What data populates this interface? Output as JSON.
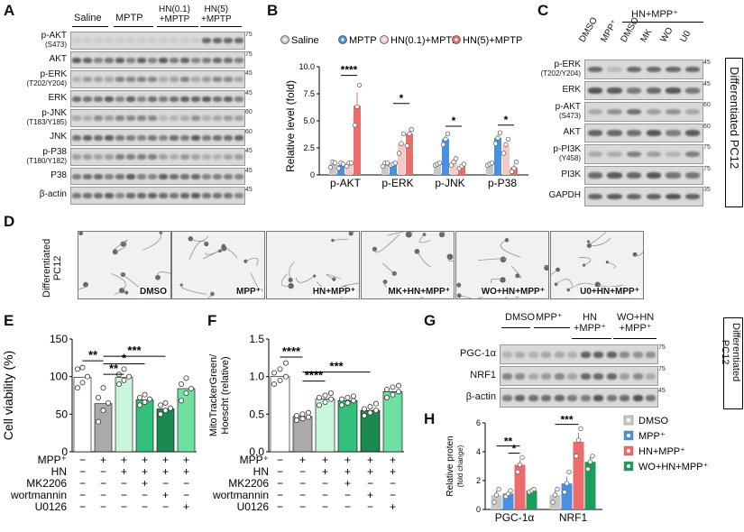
{
  "panels": {
    "A": "A",
    "B": "B",
    "C": "C",
    "D": "D",
    "E": "E",
    "F": "F",
    "G": "G",
    "H": "H"
  },
  "panelA": {
    "groups": [
      "Saline",
      "MPTP",
      "HN(0.1)\n+MPTP",
      "HN(5)\n+MPTP"
    ],
    "rows": [
      {
        "name": "p-AKT\n(S473)",
        "mw": "75"
      },
      {
        "name": "AKT",
        "mw": "75"
      },
      {
        "name": "p-ERK\n(T202/Y204)",
        "mw": "45"
      },
      {
        "name": "ERK",
        "mw": "45"
      },
      {
        "name": "p-JNK\n(T183/Y185)",
        "mw": "60"
      },
      {
        "name": "JNK",
        "mw": "60"
      },
      {
        "name": "p-P38\n(T180/Y182)",
        "mw": "45"
      },
      {
        "name": "P38",
        "mw": "45"
      },
      {
        "name": "β-actin",
        "mw": "45"
      }
    ]
  },
  "panelB": {
    "ylabel": "Relative level (fold)",
    "legend": [
      "Saline",
      "MPTP",
      "HN(0.1)+MPTP",
      "HN(5)+MPTP"
    ],
    "sig": [
      "****",
      "*",
      "*",
      "*"
    ]
  },
  "panelC": {
    "header": "HN+MPP⁺",
    "lanes": [
      "DMSO",
      "MPP⁺",
      "DMSO",
      "MK",
      "WO",
      "U0"
    ],
    "rows": [
      {
        "name": "p-ERK\n(T202/Y204)",
        "mw": "45"
      },
      {
        "name": "ERK",
        "mw": "45"
      },
      {
        "name": "p-AKT\n(S473)",
        "mw": "60"
      },
      {
        "name": "AKT",
        "mw": "60"
      },
      {
        "name": "p-PI3K\n(Y458)",
        "mw": "75"
      },
      {
        "name": "PI3K",
        "mw": "75"
      },
      {
        "name": "GAPDH",
        "mw": "35"
      }
    ],
    "side": "Differentiated PC12"
  },
  "panelD": {
    "side": "Differentiated\nPC12",
    "images": [
      "DMSO",
      "MPP⁺",
      "HN+MPP⁺",
      "MK+HN+MPP⁺",
      "WO+HN+MPP⁺",
      "U0+HN+MPP⁺"
    ]
  },
  "panelE": {
    "ylabel": "Cell viability (%)",
    "sig": [
      "**",
      "**",
      "*",
      "***"
    ]
  },
  "panelF": {
    "ylabel": "MitoTrackerGreen/\nHoescht (relative)",
    "sig": [
      "****",
      "****",
      "***"
    ]
  },
  "treatTable": {
    "rows": [
      "MPP⁺",
      "HN",
      "MK2206",
      "wortmannin",
      "U0126"
    ],
    "cells": [
      [
        "−",
        "+",
        "+",
        "+",
        "+",
        "+"
      ],
      [
        "−",
        "−",
        "+",
        "+",
        "+",
        "+"
      ],
      [
        "−",
        "−",
        "−",
        "+",
        "−",
        "−"
      ],
      [
        "−",
        "−",
        "−",
        "−",
        "+",
        "−"
      ],
      [
        "−",
        "−",
        "−",
        "−",
        "−",
        "+"
      ]
    ]
  },
  "panelG": {
    "lanes": [
      "DMSO",
      "MPP⁺",
      "HN\n+MPP⁺",
      "WO+HN\n+MPP⁺"
    ],
    "rows": [
      {
        "name": "PGC-1α",
        "mw": "75"
      },
      {
        "name": "NRF1",
        "mw": "75"
      },
      {
        "name": "β-actin",
        "mw": "45"
      }
    ],
    "side": "Differentiated\nPC12"
  },
  "panelH": {
    "ylabel": "Relative proten\n(fold change)",
    "legend": [
      "DMSO",
      "MPP⁺",
      "HN+MPP⁺",
      "WO+HN+MPP⁺"
    ],
    "sig": [
      "**",
      "*",
      "***"
    ]
  },
  "chart_data": [
    {
      "id": "B",
      "type": "bar",
      "categories": [
        "p-AKT",
        "p-ERK",
        "p-JNK",
        "p-P38"
      ],
      "ylim": [
        0,
        10
      ],
      "yticks": [
        0,
        2.5,
        5.0,
        7.5,
        10.0
      ],
      "ylabel": "Relative level (fold)",
      "series": [
        {
          "name": "Saline",
          "color": "#c8c8c8",
          "values": [
            1.0,
            1.0,
            1.0,
            1.0
          ],
          "points": [
            [
              0.7,
              1.2,
              1.1
            ],
            [
              0.8,
              1.1,
              1.1
            ],
            [
              0.9,
              1.0,
              1.1
            ],
            [
              0.9,
              1.0,
              1.1
            ]
          ]
        },
        {
          "name": "MPTP",
          "color": "#4a90e2",
          "values": [
            0.9,
            1.0,
            3.3,
            3.4
          ],
          "points": [
            [
              0.6,
              1.1,
              1.0
            ],
            [
              0.9,
              1.0,
              1.1
            ],
            [
              2.8,
              3.3,
              3.8
            ],
            [
              2.9,
              3.4,
              3.9
            ]
          ]
        },
        {
          "name": "HN(0.1)+MPTP",
          "color": "#f7c8c8",
          "values": [
            1.0,
            2.9,
            1.2,
            2.7
          ],
          "points": [
            [
              0.8,
              1.1,
              1.1
            ],
            [
              2.0,
              2.9,
              3.8
            ],
            [
              0.9,
              1.2,
              1.5
            ],
            [
              2.0,
              2.8,
              3.3
            ]
          ]
        },
        {
          "name": "HN(5)+MPTP",
          "color": "#ee6b6b",
          "values": [
            6.4,
            3.8,
            0.8,
            0.7
          ],
          "points": [
            [
              4.6,
              6.3,
              8.3
            ],
            [
              2.7,
              3.8,
              4.2
            ],
            [
              0.6,
              0.8,
              1.0
            ],
            [
              0.3,
              0.6,
              1.2
            ]
          ]
        }
      ]
    },
    {
      "id": "E",
      "type": "bar",
      "categories": [
        "1",
        "2",
        "3",
        "4",
        "5",
        "6"
      ],
      "ylim": [
        0,
        150
      ],
      "yticks": [
        0,
        50,
        100,
        150
      ],
      "ylabel": "Cell viability (%)",
      "colors": [
        "#ffffff",
        "#aaaaaa",
        "#c9f5dc",
        "#33c07a",
        "#1a8a4e",
        "#6fe0a0"
      ],
      "values": [
        99,
        64,
        99,
        69,
        57,
        84
      ],
      "points": [
        [
          85,
          92,
          100,
          110,
          112
        ],
        [
          40,
          55,
          65,
          72,
          85
        ],
        [
          90,
          95,
          100,
          103,
          110
        ],
        [
          62,
          66,
          70,
          72,
          76
        ],
        [
          50,
          55,
          58,
          62,
          65
        ],
        [
          68,
          78,
          84,
          90,
          98
        ]
      ]
    },
    {
      "id": "F",
      "type": "bar",
      "categories": [
        "1",
        "2",
        "3",
        "4",
        "5",
        "6"
      ],
      "ylim": [
        0,
        1.5
      ],
      "yticks": [
        0.0,
        0.5,
        1.0,
        1.5
      ],
      "ylabel": "MitoTrackerGreen/\nHoescht (relative)",
      "colors": [
        "#ffffff",
        "#aaaaaa",
        "#c9f5dc",
        "#33c07a",
        "#1a8a4e",
        "#6fe0a0"
      ],
      "values": [
        1.0,
        0.47,
        0.7,
        0.68,
        0.55,
        0.8
      ],
      "points": [
        [
          0.9,
          0.95,
          1.0,
          1.05,
          1.1,
          1.18
        ],
        [
          0.42,
          0.44,
          0.46,
          0.48,
          0.5,
          0.52
        ],
        [
          0.62,
          0.66,
          0.7,
          0.72,
          0.75,
          0.78
        ],
        [
          0.62,
          0.65,
          0.68,
          0.7,
          0.72,
          0.74
        ],
        [
          0.48,
          0.52,
          0.55,
          0.57,
          0.6,
          0.64
        ],
        [
          0.72,
          0.76,
          0.8,
          0.83,
          0.86,
          0.88
        ]
      ]
    },
    {
      "id": "H",
      "type": "bar",
      "categories": [
        "PGC-1α",
        "NRF1"
      ],
      "ylim": [
        0,
        6
      ],
      "yticks": [
        0,
        2,
        4,
        6
      ],
      "ylabel": "Relative proten\n(fold change)",
      "series": [
        {
          "name": "DMSO",
          "color": "#c8c8c8",
          "values": [
            1.0,
            1.0
          ],
          "points": [
            [
              0.5,
              1.0,
              1.4
            ],
            [
              0.5,
              1.0,
              1.4
            ]
          ]
        },
        {
          "name": "MPP⁺",
          "color": "#4a90e2",
          "values": [
            1.1,
            1.8
          ],
          "points": [
            [
              0.9,
              1.1,
              1.3
            ],
            [
              1.2,
              1.8,
              2.6
            ]
          ]
        },
        {
          "name": "HN+MPP⁺",
          "color": "#ee6b6b",
          "values": [
            3.1,
            4.7
          ],
          "points": [
            [
              2.6,
              3.1,
              3.6
            ],
            [
              3.7,
              4.8,
              5.6
            ]
          ]
        },
        {
          "name": "WO+HN+MPP⁺",
          "color": "#1e9c5a",
          "values": [
            1.3,
            3.3
          ],
          "points": [
            [
              1.2,
              1.3,
              1.4
            ],
            [
              2.8,
              3.3,
              3.7
            ]
          ]
        }
      ]
    }
  ]
}
